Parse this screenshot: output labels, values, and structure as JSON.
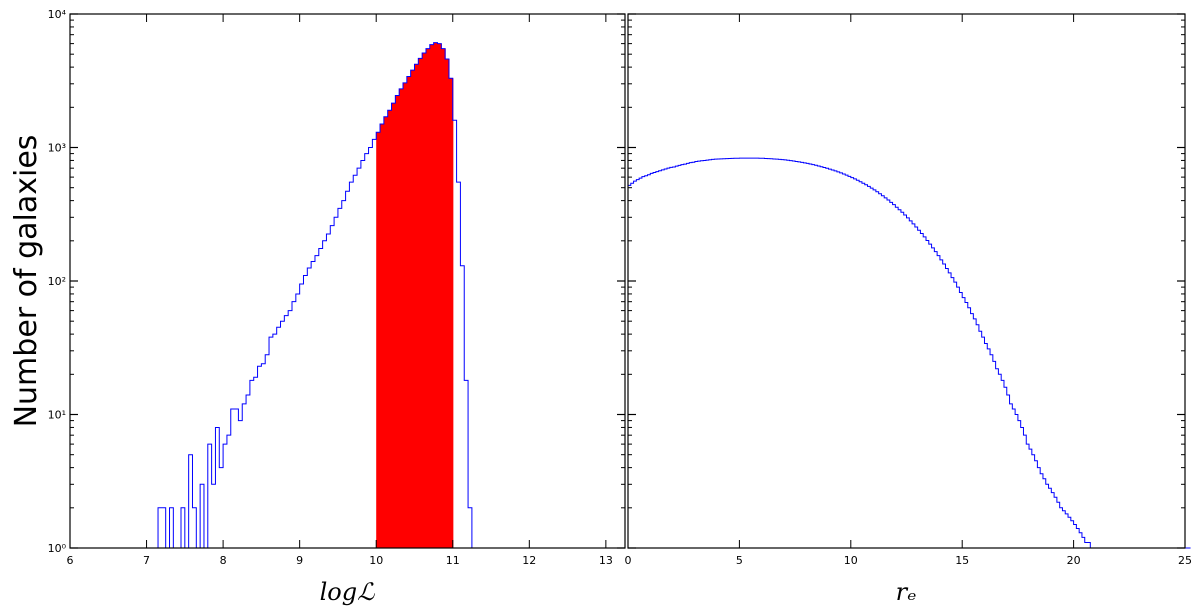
{
  "figure": {
    "ylabel": "Number of galaxies"
  },
  "chart_data": [
    {
      "type": "histogram",
      "xlabel": "logℒ",
      "ylabel": "Number of galaxies",
      "xlim": [
        6,
        13.25
      ],
      "ylim": [
        1,
        10000
      ],
      "yscale": "log",
      "xticks": [
        6,
        7,
        8,
        9,
        10,
        11,
        12,
        13
      ],
      "yticks": [
        1,
        10,
        100,
        1000,
        10000
      ],
      "ytick_labels": [
        "10⁰",
        "10¹",
        "10²",
        "10³",
        "10⁴"
      ],
      "series_color": "#0000ff",
      "highlight_color": "#ff0000",
      "highlight_range": [
        10,
        11
      ],
      "bins": {
        "start": 6.6,
        "width": 0.05,
        "counts": [
          1,
          1,
          0,
          0,
          0,
          0,
          0,
          0,
          0,
          0,
          1,
          2,
          2,
          0,
          2,
          1,
          0,
          2,
          0,
          5,
          2,
          1,
          3,
          1,
          6,
          3,
          8,
          4,
          6,
          7,
          11,
          11,
          9,
          12,
          14,
          18,
          19,
          23,
          24,
          28,
          38,
          40,
          45,
          50,
          55,
          60,
          70,
          80,
          95,
          110,
          125,
          140,
          155,
          175,
          200,
          225,
          260,
          300,
          350,
          400,
          470,
          550,
          620,
          700,
          800,
          900,
          1000,
          1150,
          1300,
          1500,
          1700,
          1900,
          2150,
          2450,
          2750,
          3050,
          3400,
          3800,
          4200,
          4650,
          5100,
          5500,
          5900,
          6100,
          6000,
          5500,
          4600,
          3300,
          1600,
          550,
          130,
          18,
          2
        ]
      }
    },
    {
      "type": "histogram",
      "xlabel": "rₑ",
      "ylabel": "",
      "xlim": [
        0,
        25
      ],
      "ylim": [
        1,
        10000
      ],
      "yscale": "log",
      "xticks": [
        0,
        5,
        10,
        15,
        20,
        25
      ],
      "series_color": "#0000ff",
      "bins": {
        "start": 0,
        "width": 0.125,
        "counts": [
          520,
          540,
          560,
          575,
          590,
          605,
          615,
          625,
          640,
          650,
          660,
          670,
          680,
          690,
          700,
          710,
          715,
          725,
          735,
          745,
          750,
          760,
          770,
          775,
          785,
          790,
          795,
          800,
          805,
          810,
          815,
          818,
          820,
          822,
          824,
          826,
          828,
          829,
          830,
          831,
          832,
          832,
          833,
          833,
          833,
          832,
          832,
          831,
          830,
          828,
          826,
          824,
          821,
          818,
          815,
          811,
          807,
          802,
          797,
          792,
          786,
          780,
          774,
          767,
          760,
          752,
          744,
          736,
          727,
          718,
          709,
          699,
          689,
          679,
          668,
          657,
          645,
          633,
          621,
          608,
          595,
          582,
          568,
          554,
          540,
          526,
          511,
          496,
          481,
          466,
          450,
          435,
          419,
          404,
          388,
          373,
          357,
          342,
          327,
          312,
          297,
          282,
          268,
          254,
          240,
          227,
          214,
          201,
          189,
          177,
          166,
          155,
          144,
          134,
          124,
          115,
          106,
          98,
          90,
          82,
          75,
          69,
          63,
          57,
          52,
          47,
          42,
          38,
          34,
          31,
          28,
          25,
          22,
          20,
          18,
          16,
          14,
          12,
          11,
          10,
          9,
          8,
          7,
          6,
          5.5,
          5,
          4.5,
          4,
          3.6,
          3.3,
          3,
          2.8,
          2.6,
          2.4,
          2.2,
          2,
          1.9,
          1.8,
          1.7,
          1.6,
          1.5,
          1.4,
          1.3,
          1.2,
          1.1,
          1.1,
          1,
          1,
          1,
          1,
          1,
          1,
          1,
          1,
          1,
          1,
          1,
          1,
          1,
          1,
          1,
          1,
          1,
          1,
          1,
          1,
          1,
          1,
          1,
          1,
          1,
          1,
          1,
          1,
          1,
          1,
          1,
          1,
          1,
          1,
          1,
          1
        ]
      }
    }
  ]
}
